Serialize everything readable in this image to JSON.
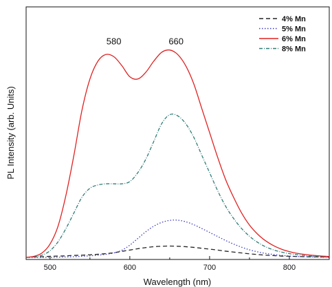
{
  "chart_data": {
    "type": "line",
    "xlabel": "Wavelength (nm)",
    "ylabel": "PL Intensity (arb. Units)",
    "xlim": [
      470,
      850
    ],
    "ylim": [
      0,
      1.0
    ],
    "x_ticks": [
      500,
      600,
      700,
      800
    ],
    "x_tick_labels": [
      "500",
      "600",
      "700",
      "800"
    ],
    "grid": false,
    "legend_position": "top-right",
    "annotations": [
      {
        "text": "580",
        "x": 580,
        "y": 0.93
      },
      {
        "text": "660",
        "x": 658,
        "y": 0.93
      }
    ],
    "x": [
      470,
      480,
      490,
      500,
      510,
      520,
      530,
      540,
      550,
      560,
      570,
      580,
      590,
      600,
      610,
      620,
      630,
      640,
      650,
      660,
      670,
      680,
      690,
      700,
      710,
      720,
      730,
      740,
      750,
      760,
      770,
      780,
      790,
      800,
      810,
      820,
      830,
      840,
      850
    ],
    "series": [
      {
        "name": "4% Mn",
        "color": "#222222",
        "dash": "6,4",
        "values": [
          0.0,
          0.002,
          0.003,
          0.005,
          0.006,
          0.007,
          0.009,
          0.01,
          0.012,
          0.014,
          0.017,
          0.021,
          0.027,
          0.033,
          0.039,
          0.044,
          0.048,
          0.05,
          0.051,
          0.05,
          0.048,
          0.045,
          0.041,
          0.037,
          0.033,
          0.028,
          0.024,
          0.02,
          0.016,
          0.013,
          0.01,
          0.008,
          0.006,
          0.005,
          0.004,
          0.003,
          0.002,
          0.002,
          0.001
        ]
      },
      {
        "name": "5% Mn",
        "color": "#3b3bbf",
        "dash": "1.5,2.5",
        "values": [
          0.0,
          0.0,
          0.0,
          0.0,
          0.001,
          0.002,
          0.003,
          0.005,
          0.007,
          0.01,
          0.014,
          0.02,
          0.032,
          0.055,
          0.085,
          0.115,
          0.14,
          0.157,
          0.166,
          0.167,
          0.16,
          0.147,
          0.13,
          0.112,
          0.094,
          0.076,
          0.06,
          0.046,
          0.034,
          0.025,
          0.018,
          0.013,
          0.009,
          0.006,
          0.004,
          0.003,
          0.002,
          0.001,
          0.0
        ]
      },
      {
        "name": "6% Mn",
        "color": "#e02020",
        "dash": "",
        "values": [
          0.0,
          0.005,
          0.02,
          0.06,
          0.14,
          0.28,
          0.46,
          0.66,
          0.8,
          0.88,
          0.91,
          0.9,
          0.86,
          0.81,
          0.8,
          0.83,
          0.88,
          0.92,
          0.93,
          0.91,
          0.86,
          0.78,
          0.67,
          0.56,
          0.45,
          0.35,
          0.27,
          0.2,
          0.145,
          0.105,
          0.075,
          0.053,
          0.037,
          0.026,
          0.018,
          0.013,
          0.009,
          0.006,
          0.004
        ]
      },
      {
        "name": "8% Mn",
        "color": "#2e7d77",
        "dash": "5,2,1,2",
        "values": [
          0.0,
          0.003,
          0.01,
          0.03,
          0.07,
          0.13,
          0.2,
          0.27,
          0.31,
          0.325,
          0.33,
          0.33,
          0.33,
          0.34,
          0.38,
          0.44,
          0.52,
          0.6,
          0.64,
          0.635,
          0.6,
          0.54,
          0.46,
          0.38,
          0.3,
          0.23,
          0.175,
          0.13,
          0.095,
          0.068,
          0.048,
          0.034,
          0.024,
          0.017,
          0.012,
          0.008,
          0.005,
          0.003,
          0.002
        ]
      }
    ]
  }
}
